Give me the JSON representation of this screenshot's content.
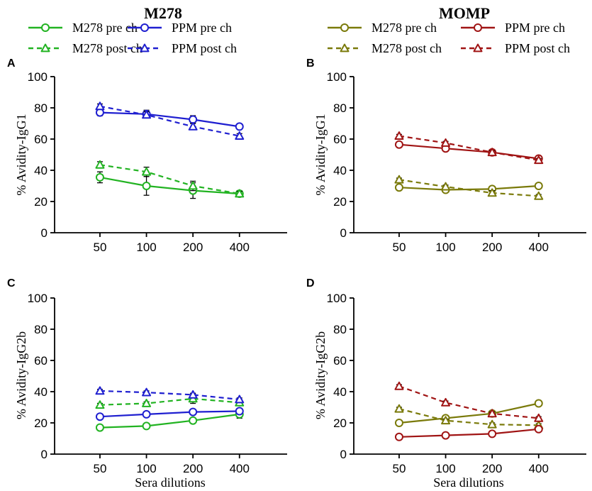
{
  "colors": {
    "m278_green": "#22b322",
    "ppm_blue": "#1f1fd0",
    "m278_olive": "#7a7a0a",
    "ppm_red": "#a01414",
    "axis": "#000000"
  },
  "groups": [
    {
      "title": "M278",
      "legend": [
        {
          "label": "M278 pre ch",
          "color": "#22b322",
          "dash": false,
          "marker": "circle"
        },
        {
          "label": "PPM pre ch",
          "color": "#1f1fd0",
          "dash": false,
          "marker": "circle"
        },
        {
          "label": "M278 post ch",
          "color": "#22b322",
          "dash": true,
          "marker": "triangle"
        },
        {
          "label": "PPM post ch",
          "color": "#1f1fd0",
          "dash": true,
          "marker": "triangle"
        }
      ]
    },
    {
      "title": "MOMP",
      "legend": [
        {
          "label": "M278 pre ch",
          "color": "#7a7a0a",
          "dash": false,
          "marker": "circle"
        },
        {
          "label": "PPM pre ch",
          "color": "#a01414",
          "dash": false,
          "marker": "circle"
        },
        {
          "label": "M278 post ch",
          "color": "#7a7a0a",
          "dash": true,
          "marker": "triangle"
        },
        {
          "label": "PPM post ch",
          "color": "#a01414",
          "dash": true,
          "marker": "triangle"
        }
      ]
    }
  ],
  "chart_data": [
    {
      "panel": "A",
      "type": "line",
      "ylabel": "% Avidity-IgG1",
      "xlabel": "",
      "categories": [
        "50",
        "100",
        "200",
        "400"
      ],
      "ylim": [
        0,
        100
      ],
      "yticks": [
        0,
        20,
        40,
        60,
        80,
        100
      ],
      "series": [
        {
          "name": "M278 pre ch",
          "color": "#22b322",
          "dash": false,
          "marker": "circle",
          "values": [
            35.5,
            30,
            27,
            25
          ],
          "errors": [
            3.5,
            6,
            5,
            2
          ]
        },
        {
          "name": "M278 post ch",
          "color": "#22b322",
          "dash": true,
          "marker": "triangle",
          "values": [
            43.5,
            39,
            30,
            25
          ],
          "errors": [
            2,
            3,
            3,
            1.5
          ]
        },
        {
          "name": "PPM pre ch",
          "color": "#1f1fd0",
          "dash": false,
          "marker": "circle",
          "values": [
            77,
            76,
            72.5,
            68
          ],
          "errors": [
            2,
            2.5,
            2.5,
            1
          ]
        },
        {
          "name": "PPM post ch",
          "color": "#1f1fd0",
          "dash": true,
          "marker": "triangle",
          "values": [
            81,
            75.5,
            68,
            62
          ],
          "errors": [
            1.5,
            2,
            2,
            1.5
          ]
        }
      ]
    },
    {
      "panel": "B",
      "type": "line",
      "ylabel": "% Avidity-IgG1",
      "xlabel": "",
      "categories": [
        "50",
        "100",
        "200",
        "400"
      ],
      "ylim": [
        0,
        100
      ],
      "yticks": [
        0,
        20,
        40,
        60,
        80,
        100
      ],
      "series": [
        {
          "name": "M278 pre ch",
          "color": "#7a7a0a",
          "dash": false,
          "marker": "circle",
          "values": [
            29,
            27.5,
            28,
            30
          ],
          "errors": [
            1,
            1,
            1.5,
            1
          ]
        },
        {
          "name": "M278 post ch",
          "color": "#7a7a0a",
          "dash": true,
          "marker": "triangle",
          "values": [
            34,
            29.5,
            25.5,
            23.5
          ],
          "errors": [
            1,
            1,
            1.5,
            1
          ]
        },
        {
          "name": "PPM pre ch",
          "color": "#a01414",
          "dash": false,
          "marker": "circle",
          "values": [
            56.5,
            54,
            51.5,
            47.5
          ],
          "errors": [
            1,
            1,
            1,
            1
          ]
        },
        {
          "name": "PPM post ch",
          "color": "#a01414",
          "dash": true,
          "marker": "triangle",
          "values": [
            62,
            57.5,
            51.5,
            46.5
          ],
          "errors": [
            1,
            1,
            1,
            1
          ]
        }
      ]
    },
    {
      "panel": "C",
      "type": "line",
      "ylabel": "% Avidity-IgG2b",
      "xlabel": "Sera dilutions",
      "categories": [
        "50",
        "100",
        "200",
        "400"
      ],
      "ylim": [
        0,
        100
      ],
      "yticks": [
        0,
        20,
        40,
        60,
        80,
        100
      ],
      "series": [
        {
          "name": "M278 pre ch",
          "color": "#22b322",
          "dash": false,
          "marker": "circle",
          "values": [
            17,
            18,
            21.5,
            25.5
          ],
          "errors": [
            0.8,
            1.5,
            1.5,
            2.5
          ]
        },
        {
          "name": "M278 post ch",
          "color": "#22b322",
          "dash": true,
          "marker": "triangle",
          "values": [
            31.5,
            32.5,
            35.5,
            33
          ],
          "errors": [
            1,
            1,
            3,
            2
          ]
        },
        {
          "name": "PPM pre ch",
          "color": "#1f1fd0",
          "dash": false,
          "marker": "circle",
          "values": [
            24,
            25.5,
            27,
            27.5
          ],
          "errors": [
            1,
            1,
            1,
            1
          ]
        },
        {
          "name": "PPM post ch",
          "color": "#1f1fd0",
          "dash": true,
          "marker": "triangle",
          "values": [
            40.5,
            39.5,
            38,
            35
          ],
          "errors": [
            1,
            1,
            1,
            1
          ]
        }
      ]
    },
    {
      "panel": "D",
      "type": "line",
      "ylabel": "% Avidity-IgG2b",
      "xlabel": "Sera dilutions",
      "categories": [
        "50",
        "100",
        "200",
        "400"
      ],
      "ylim": [
        0,
        100
      ],
      "yticks": [
        0,
        20,
        40,
        60,
        80,
        100
      ],
      "series": [
        {
          "name": "M278 pre ch",
          "color": "#7a7a0a",
          "dash": false,
          "marker": "circle",
          "values": [
            20,
            23,
            26,
            32.5
          ],
          "errors": [
            1,
            1,
            1,
            1
          ]
        },
        {
          "name": "M278 post ch",
          "color": "#7a7a0a",
          "dash": true,
          "marker": "triangle",
          "values": [
            29,
            21.5,
            19,
            18.5
          ],
          "errors": [
            1,
            1,
            1,
            1
          ]
        },
        {
          "name": "PPM pre ch",
          "color": "#a01414",
          "dash": false,
          "marker": "circle",
          "values": [
            11,
            12,
            13,
            16
          ],
          "errors": [
            0.5,
            0.5,
            1,
            1
          ]
        },
        {
          "name": "PPM post ch",
          "color": "#a01414",
          "dash": true,
          "marker": "triangle",
          "values": [
            43.5,
            33,
            26,
            23
          ],
          "errors": [
            1,
            1,
            1,
            1
          ]
        }
      ]
    }
  ]
}
